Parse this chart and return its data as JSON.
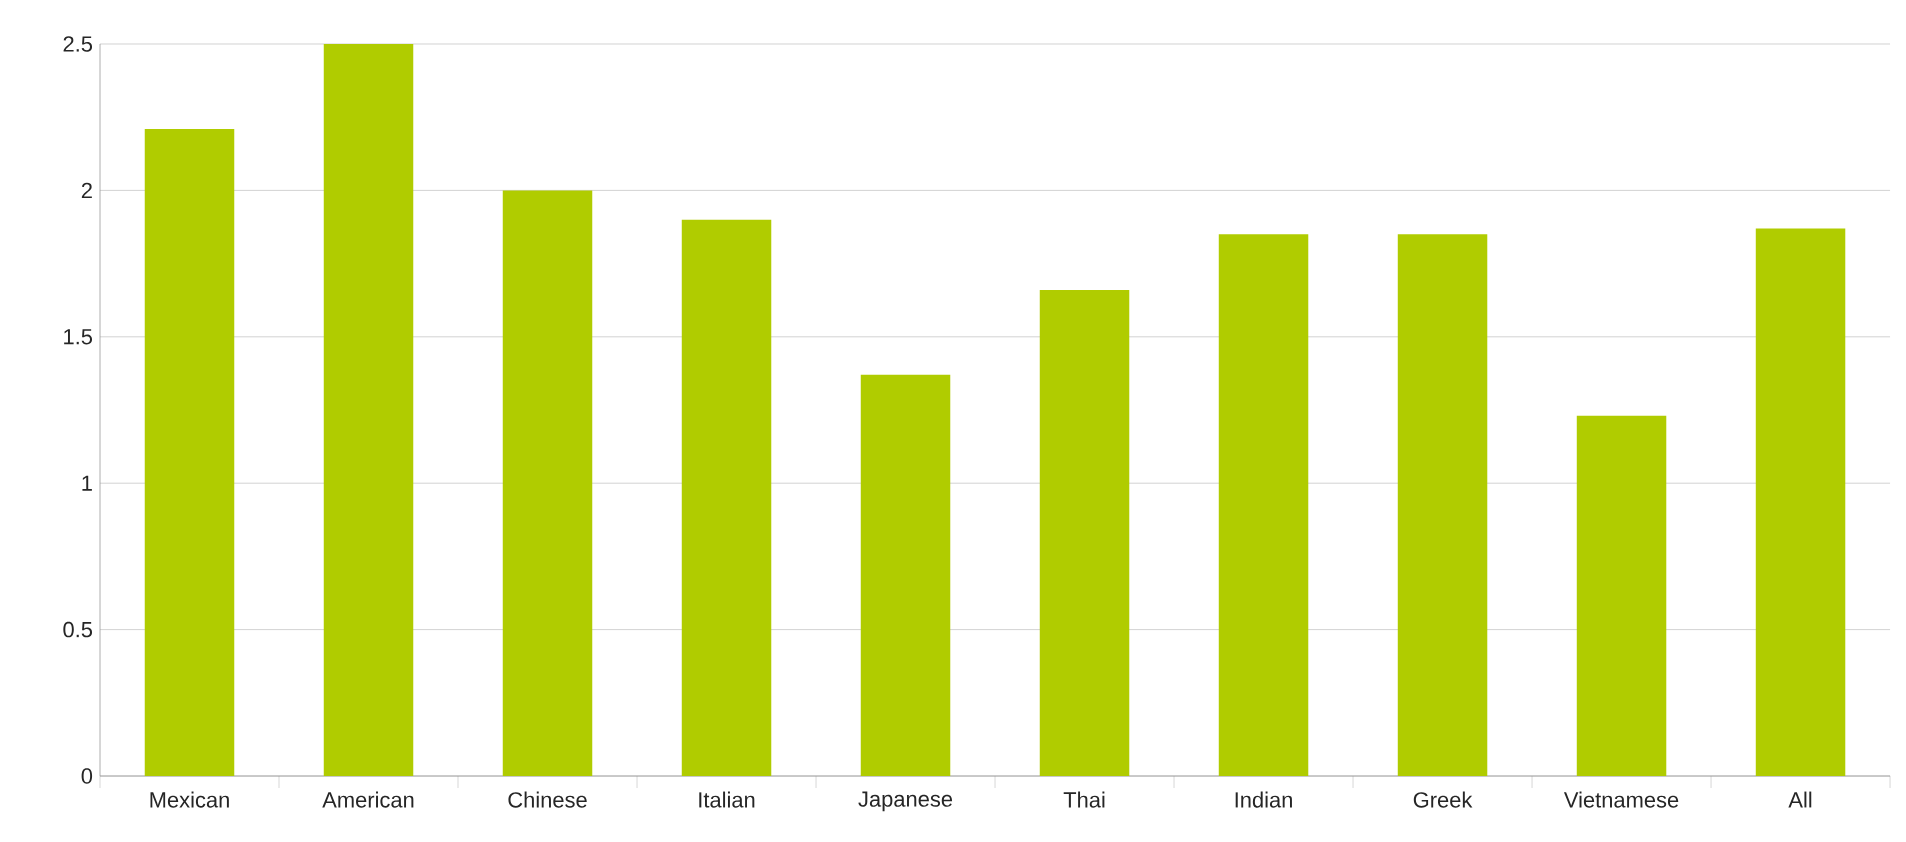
{
  "chart_data": {
    "type": "bar",
    "categories": [
      "Mexican",
      "American",
      "Chinese",
      "Italian",
      "Japanese",
      "Thai",
      "Indian",
      "Greek",
      "Vietnamese",
      "All"
    ],
    "values": [
      2.21,
      2.5,
      2.0,
      1.9,
      1.37,
      1.66,
      1.85,
      1.85,
      1.23,
      1.87
    ],
    "color": "#b0cc00",
    "ylim": [
      0,
      2.5
    ],
    "yticks": [
      0,
      0.5,
      1,
      1.5,
      2,
      2.5
    ],
    "grid": "y"
  }
}
